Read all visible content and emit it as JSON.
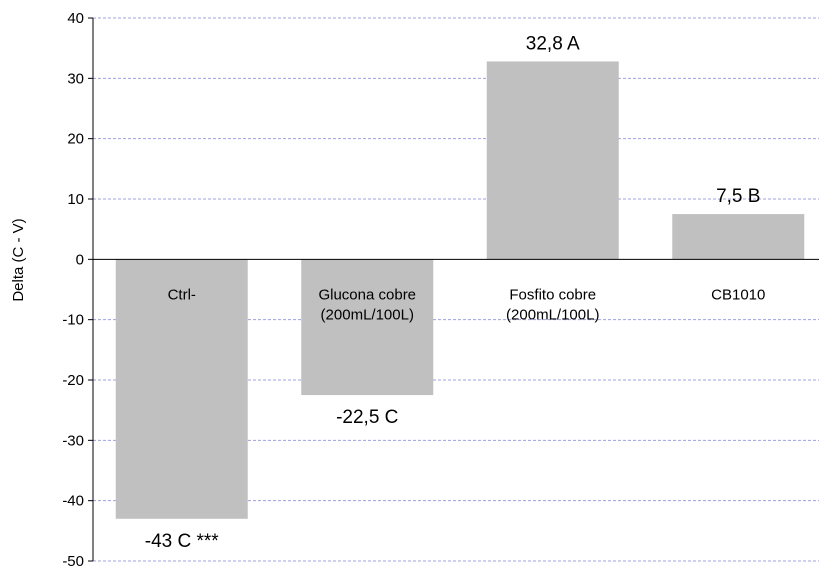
{
  "chart_data": {
    "type": "bar",
    "categories": [
      [
        "Ctrl-"
      ],
      [
        "Glucona cobre",
        "(200mL/100L)"
      ],
      [
        "Fosfito cobre",
        "(200mL/100L)"
      ],
      [
        "CB1010"
      ]
    ],
    "values": [
      -43,
      -22.5,
      32.8,
      7.5
    ],
    "data_labels": [
      "-43 C ***",
      "-22,5 C",
      "32,8 A",
      "7,5 B"
    ],
    "ylabel": "Delta (C - V)",
    "xlabel": "",
    "title": "",
    "ylim": [
      -50,
      40
    ],
    "yticks": [
      40,
      30,
      20,
      10,
      0,
      -10,
      -20,
      -30,
      -40,
      -50
    ],
    "grid": true,
    "legend": "none",
    "colors": {
      "bar": "#c0c0c0",
      "grid": "#a0a0e0",
      "axis": "#000000"
    }
  }
}
